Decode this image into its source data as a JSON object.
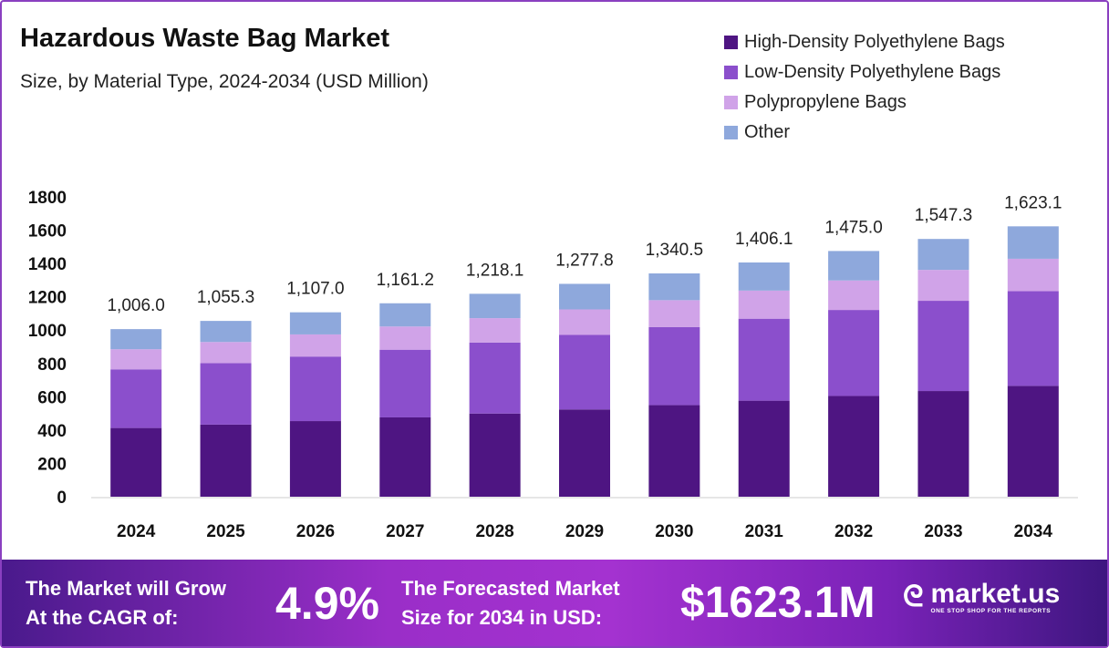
{
  "chart_data": {
    "type": "bar",
    "stacked": true,
    "title": "Hazardous Waste Bag Market",
    "subtitle": "Size, by Material Type, 2024-2034 (USD Million)",
    "categories": [
      "2024",
      "2025",
      "2026",
      "2027",
      "2028",
      "2029",
      "2030",
      "2031",
      "2032",
      "2033",
      "2034"
    ],
    "totals": [
      1006.0,
      1055.3,
      1107.0,
      1161.2,
      1218.1,
      1277.8,
      1340.5,
      1406.1,
      1475.0,
      1547.3,
      1623.1
    ],
    "total_labels": [
      "1,006.0",
      "1,055.3",
      "1,107.0",
      "1,161.2",
      "1,218.1",
      "1,277.8",
      "1,340.5",
      "1,406.1",
      "1,475.0",
      "1,547.3",
      "1,623.1"
    ],
    "series": [
      {
        "name": "High-Density Polyethylene Bags",
        "color": "#4e1582",
        "values": [
          412.5,
          432.7,
          453.9,
          476.1,
          499.4,
          523.9,
          549.6,
          576.5,
          604.8,
          634.4,
          665.5
        ]
      },
      {
        "name": "Low-Density Polyethylene Bags",
        "color": "#8b4fcc",
        "values": [
          352.1,
          369.4,
          387.5,
          406.4,
          426.3,
          447.2,
          469.2,
          492.1,
          516.3,
          541.6,
          568.1
        ]
      },
      {
        "name": "Polypropylene Bags",
        "color": "#d0a3e8",
        "values": [
          120.7,
          126.6,
          132.8,
          139.3,
          146.2,
          153.3,
          160.9,
          168.7,
          177.0,
          185.7,
          194.8
        ]
      },
      {
        "name": "Other",
        "color": "#8ea8dc",
        "values": [
          120.7,
          126.6,
          132.8,
          139.4,
          146.2,
          153.4,
          160.8,
          168.8,
          176.9,
          185.6,
          194.7
        ]
      }
    ],
    "yticks": [
      0,
      200,
      400,
      600,
      800,
      1000,
      1200,
      1400,
      1600,
      1800
    ],
    "ylim": [
      0,
      1800
    ],
    "grid": false,
    "legend_position": "top-right"
  },
  "banner": {
    "cagr_text_1": "The Market will Grow",
    "cagr_text_2": "At the CAGR of:",
    "cagr_value": "4.9%",
    "forecast_text_1": "The Forecasted Market",
    "forecast_text_2": "Size for 2034 in USD:",
    "forecast_value": "$1623.1M",
    "logo": "market.us",
    "logo_tagline": "ONE STOP SHOP FOR THE REPORTS"
  }
}
